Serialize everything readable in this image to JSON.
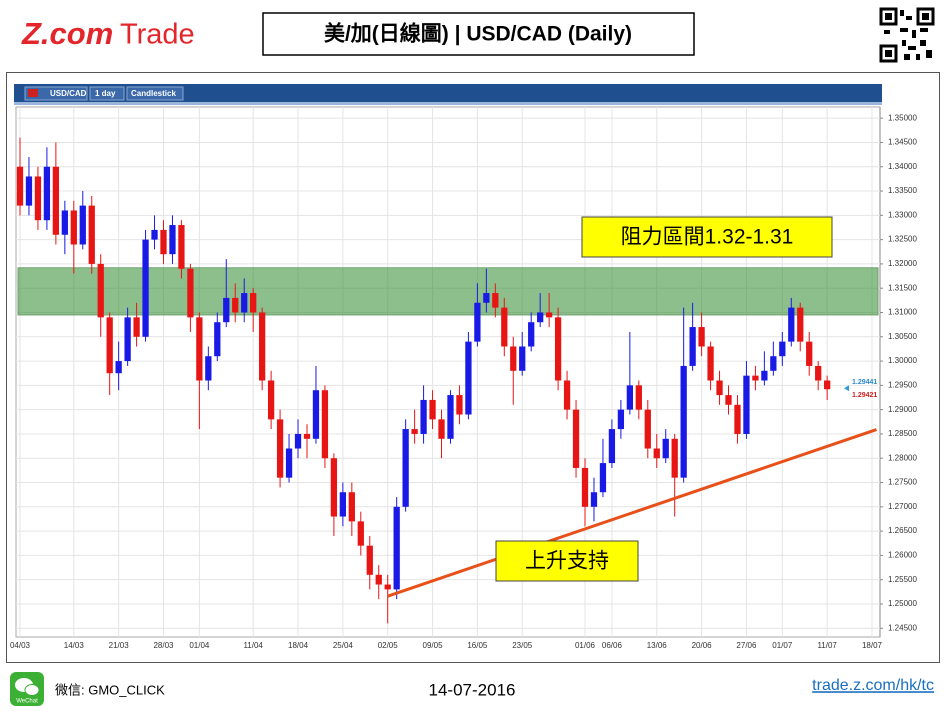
{
  "header": {
    "logo_brand": "Z.com",
    "logo_product": "Trade",
    "title": "美/加(日線圖) | USD/CAD  (Daily)"
  },
  "toolbar": {
    "symbol": "USD/CAD",
    "interval": "1 day",
    "chart_style": "Candlestick"
  },
  "chart_data": {
    "type": "candlestick",
    "up_color": "#1a1ae6",
    "down_color": "#e81515",
    "grid": true,
    "open": [
      1.34,
      1.332,
      1.338,
      1.329,
      1.34,
      1.326,
      1.331,
      1.324,
      1.332,
      1.32,
      1.309,
      1.2975,
      1.3,
      1.309,
      1.305,
      1.325,
      1.327,
      1.322,
      1.328,
      1.319,
      1.309,
      1.296,
      1.301,
      1.308,
      1.313,
      1.31,
      1.314,
      1.31,
      1.296,
      1.288,
      1.276,
      1.282,
      1.285,
      1.284,
      1.294,
      1.28,
      1.268,
      1.273,
      1.267,
      1.262,
      1.256,
      1.254,
      1.253,
      1.27,
      1.286,
      1.285,
      1.292,
      1.288,
      1.284,
      1.293,
      1.289,
      1.304,
      1.312,
      1.314,
      1.311,
      1.303,
      1.298,
      1.303,
      1.308,
      1.31,
      1.309,
      1.296,
      1.29,
      1.278,
      1.27,
      1.273,
      1.279,
      1.286,
      1.29,
      1.295,
      1.29,
      1.282,
      1.28,
      1.284,
      1.276,
      1.299,
      1.307,
      1.303,
      1.296,
      1.293,
      1.291,
      1.285,
      1.297,
      1.296,
      1.298,
      1.301,
      1.304,
      1.311,
      1.304,
      1.299,
      1.296
    ],
    "high": [
      1.346,
      1.342,
      1.34,
      1.344,
      1.345,
      1.333,
      1.333,
      1.335,
      1.334,
      1.322,
      1.31,
      1.304,
      1.311,
      1.312,
      1.327,
      1.33,
      1.329,
      1.33,
      1.329,
      1.32,
      1.31,
      1.303,
      1.31,
      1.321,
      1.316,
      1.317,
      1.315,
      1.311,
      1.298,
      1.29,
      1.285,
      1.288,
      1.287,
      1.299,
      1.295,
      1.281,
      1.275,
      1.275,
      1.269,
      1.264,
      1.258,
      1.256,
      1.272,
      1.288,
      1.29,
      1.295,
      1.294,
      1.29,
      1.294,
      1.295,
      1.306,
      1.316,
      1.319,
      1.316,
      1.313,
      1.305,
      1.306,
      1.31,
      1.314,
      1.314,
      1.311,
      1.298,
      1.292,
      1.28,
      1.276,
      1.284,
      1.288,
      1.292,
      1.306,
      1.296,
      1.292,
      1.285,
      1.286,
      1.285,
      1.311,
      1.312,
      1.31,
      1.304,
      1.298,
      1.295,
      1.293,
      1.3,
      1.299,
      1.302,
      1.304,
      1.306,
      1.313,
      1.312,
      1.306,
      1.3,
      1.297
    ],
    "low": [
      1.33,
      1.33,
      1.327,
      1.327,
      1.324,
      1.322,
      1.318,
      1.323,
      1.318,
      1.305,
      1.293,
      1.294,
      1.299,
      1.303,
      1.304,
      1.323,
      1.32,
      1.32,
      1.317,
      1.306,
      1.286,
      1.294,
      1.3,
      1.307,
      1.308,
      1.308,
      1.306,
      1.294,
      1.286,
      1.274,
      1.275,
      1.28,
      1.28,
      1.283,
      1.278,
      1.264,
      1.266,
      1.264,
      1.26,
      1.253,
      1.251,
      1.246,
      1.251,
      1.269,
      1.283,
      1.283,
      1.286,
      1.28,
      1.283,
      1.287,
      1.288,
      1.303,
      1.31,
      1.309,
      1.301,
      1.291,
      1.297,
      1.302,
      1.307,
      1.307,
      1.294,
      1.288,
      1.276,
      1.266,
      1.267,
      1.272,
      1.278,
      1.284,
      1.289,
      1.288,
      1.28,
      1.278,
      1.279,
      1.268,
      1.275,
      1.298,
      1.301,
      1.294,
      1.291,
      1.289,
      1.283,
      1.284,
      1.294,
      1.295,
      1.297,
      1.299,
      1.303,
      1.302,
      1.297,
      1.294,
      1.292
    ],
    "close": [
      1.332,
      1.338,
      1.329,
      1.34,
      1.326,
      1.331,
      1.324,
      1.332,
      1.32,
      1.309,
      1.2975,
      1.3,
      1.309,
      1.305,
      1.325,
      1.327,
      1.322,
      1.328,
      1.319,
      1.309,
      1.296,
      1.301,
      1.308,
      1.313,
      1.31,
      1.314,
      1.31,
      1.296,
      1.288,
      1.276,
      1.282,
      1.285,
      1.284,
      1.294,
      1.28,
      1.268,
      1.273,
      1.267,
      1.262,
      1.256,
      1.254,
      1.253,
      1.27,
      1.286,
      1.285,
      1.292,
      1.288,
      1.284,
      1.293,
      1.289,
      1.304,
      1.312,
      1.314,
      1.311,
      1.303,
      1.298,
      1.303,
      1.308,
      1.31,
      1.309,
      1.296,
      1.29,
      1.278,
      1.27,
      1.273,
      1.279,
      1.286,
      1.29,
      1.295,
      1.29,
      1.282,
      1.28,
      1.284,
      1.276,
      1.299,
      1.307,
      1.303,
      1.296,
      1.293,
      1.291,
      1.285,
      1.297,
      1.296,
      1.298,
      1.301,
      1.304,
      1.311,
      1.304,
      1.299,
      1.296,
      1.2942
    ],
    "xlim": [
      0,
      95
    ],
    "xticks": [
      {
        "value": 0,
        "label": "04/03"
      },
      {
        "value": 6,
        "label": "14/03"
      },
      {
        "value": 11,
        "label": "21/03"
      },
      {
        "value": 16,
        "label": "28/03"
      },
      {
        "value": 20,
        "label": "01/04"
      },
      {
        "value": 26,
        "label": "11/04"
      },
      {
        "value": 31,
        "label": "18/04"
      },
      {
        "value": 36,
        "label": "25/04"
      },
      {
        "value": 41,
        "label": "02/05"
      },
      {
        "value": 46,
        "label": "09/05"
      },
      {
        "value": 51,
        "label": "16/05"
      },
      {
        "value": 56,
        "label": "23/05"
      },
      {
        "value": 63,
        "label": "01/06"
      },
      {
        "value": 66,
        "label": "06/06"
      },
      {
        "value": 71,
        "label": "13/06"
      },
      {
        "value": 76,
        "label": "20/06"
      },
      {
        "value": 81,
        "label": "27/06"
      },
      {
        "value": 85,
        "label": "01/07"
      },
      {
        "value": 90,
        "label": "11/07"
      },
      {
        "value": 95,
        "label": "18/07"
      }
    ],
    "ylim": [
      1.2432,
      1.3523
    ],
    "yticks": [
      {
        "value": 1.245,
        "label": "1.24500"
      },
      {
        "value": 1.25,
        "label": "1.25000"
      },
      {
        "value": 1.255,
        "label": "1.25500"
      },
      {
        "value": 1.26,
        "label": "1.26000"
      },
      {
        "value": 1.265,
        "label": "1.26500"
      },
      {
        "value": 1.27,
        "label": "1.27000"
      },
      {
        "value": 1.275,
        "label": "1.27500"
      },
      {
        "value": 1.28,
        "label": "1.28000"
      },
      {
        "value": 1.285,
        "label": "1.28500"
      },
      {
        "value": 1.29,
        "label": "1.29000"
      },
      {
        "value": 1.295,
        "label": "1.29500"
      },
      {
        "value": 1.3,
        "label": "1.30000"
      },
      {
        "value": 1.305,
        "label": "1.30500"
      },
      {
        "value": 1.31,
        "label": "1.31000"
      },
      {
        "value": 1.315,
        "label": "1.31500"
      },
      {
        "value": 1.32,
        "label": "1.32000"
      },
      {
        "value": 1.325,
        "label": "1.32500"
      },
      {
        "value": 1.33,
        "label": "1.33000"
      },
      {
        "value": 1.335,
        "label": "1.33500"
      },
      {
        "value": 1.34,
        "label": "1.34000"
      },
      {
        "value": 1.345,
        "label": "1.34500"
      },
      {
        "value": 1.35,
        "label": "1.35000"
      }
    ],
    "last_prices": [
      1.29441,
      1.29421
    ],
    "resistance_zone": {
      "range": [
        1.3095,
        1.3192
      ],
      "label": "阻力區間1.32-1.31"
    },
    "support_line": {
      "x": [
        41,
        95.5
      ],
      "y": [
        1.2516,
        1.2859
      ],
      "label": "上升支持"
    }
  },
  "footer": {
    "wechat_icon": "WeChat",
    "wechat_id": "微信: GMO_CLICK",
    "date": "14-07-2016",
    "link": "trade.z.com/hk/tc"
  }
}
